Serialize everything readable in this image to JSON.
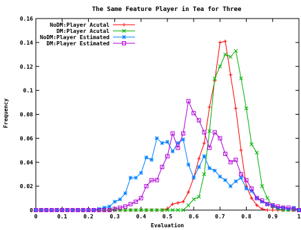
{
  "chart_data": {
    "type": "line",
    "title": "The Same Feature Player in Tea for Three",
    "xlabel": "Evaluation",
    "ylabel": "Frequency",
    "xlim": [
      0,
      1
    ],
    "ylim": [
      0,
      0.16
    ],
    "x_ticks": [
      "0",
      "0.1",
      "0.2",
      "0.3",
      "0.4",
      "0.5",
      "0.6",
      "0.7",
      "0.8",
      "0.9",
      "1"
    ],
    "y_ticks": [
      "0",
      "0.02",
      "0.04",
      "0.06",
      "0.08",
      "0.1",
      "0.12",
      "0.14",
      "0.16"
    ],
    "grid": false,
    "legend_position": "top-left",
    "series": [
      {
        "name": "NoDM:Player Acutal",
        "color": "#ff0000",
        "marker": "plus",
        "x": [
          0,
          0.02,
          0.04,
          0.06,
          0.08,
          0.1,
          0.12,
          0.14,
          0.16,
          0.18,
          0.2,
          0.22,
          0.24,
          0.26,
          0.28,
          0.3,
          0.32,
          0.34,
          0.36,
          0.38,
          0.4,
          0.42,
          0.44,
          0.46,
          0.48,
          0.5,
          0.52,
          0.54,
          0.56,
          0.58,
          0.6,
          0.62,
          0.64,
          0.66,
          0.68,
          0.7,
          0.72,
          0.74,
          0.76,
          0.78,
          0.8,
          0.82,
          0.84,
          0.86,
          0.88,
          0.9,
          0.92,
          0.94,
          0.96,
          0.98,
          1
        ],
        "y": [
          0,
          0,
          0,
          0,
          0,
          0,
          0,
          0,
          0,
          0,
          0,
          0,
          0,
          0,
          0,
          0,
          0,
          0,
          0,
          0,
          0,
          0,
          0,
          0,
          0,
          0.001,
          0.005,
          0.006,
          0.007,
          0.015,
          0.027,
          0.043,
          0.056,
          0.086,
          0.108,
          0.14,
          0.141,
          0.113,
          0.085,
          0.05,
          0.02,
          0.01,
          0.004,
          0.001,
          0,
          0,
          0,
          0,
          0,
          0,
          0
        ]
      },
      {
        "name": "DM:Player Acutal",
        "color": "#00b000",
        "marker": "x",
        "x": [
          0,
          0.02,
          0.04,
          0.06,
          0.08,
          0.1,
          0.12,
          0.14,
          0.16,
          0.18,
          0.2,
          0.22,
          0.24,
          0.26,
          0.28,
          0.3,
          0.32,
          0.34,
          0.36,
          0.38,
          0.4,
          0.42,
          0.44,
          0.46,
          0.48,
          0.5,
          0.52,
          0.54,
          0.56,
          0.58,
          0.6,
          0.62,
          0.64,
          0.66,
          0.68,
          0.7,
          0.72,
          0.74,
          0.76,
          0.78,
          0.8,
          0.82,
          0.84,
          0.86,
          0.88,
          0.9,
          0.92,
          0.94,
          0.96,
          0.98,
          1
        ],
        "y": [
          0,
          0,
          0,
          0,
          0,
          0,
          0,
          0,
          0,
          0,
          0,
          0,
          0,
          0,
          0,
          0,
          0,
          0,
          0,
          0,
          0,
          0,
          0,
          0,
          0,
          0,
          0,
          0,
          0,
          0.004,
          0.009,
          0.011,
          0.03,
          0.066,
          0.11,
          0.12,
          0.13,
          0.128,
          0.133,
          0.11,
          0.085,
          0.055,
          0.048,
          0.02,
          0.01,
          0.003,
          0.001,
          0,
          0,
          0,
          0
        ]
      },
      {
        "name": "NoDM:Player Estimated",
        "color": "#0080ff",
        "marker": "star",
        "x": [
          0,
          0.02,
          0.04,
          0.06,
          0.08,
          0.1,
          0.12,
          0.14,
          0.16,
          0.18,
          0.2,
          0.22,
          0.24,
          0.26,
          0.28,
          0.3,
          0.32,
          0.34,
          0.36,
          0.38,
          0.4,
          0.42,
          0.44,
          0.46,
          0.48,
          0.5,
          0.52,
          0.54,
          0.56,
          0.58,
          0.6,
          0.62,
          0.64,
          0.66,
          0.68,
          0.7,
          0.72,
          0.74,
          0.76,
          0.78,
          0.8,
          0.82,
          0.84,
          0.86,
          0.88,
          0.9,
          0.92,
          0.94,
          0.96,
          0.98,
          1
        ],
        "y": [
          0,
          0,
          0,
          0,
          0,
          0,
          0,
          0,
          0,
          0,
          0,
          0,
          0.001,
          0.002,
          0.003,
          0.007,
          0.009,
          0.014,
          0.027,
          0.027,
          0.031,
          0.044,
          0.042,
          0.06,
          0.056,
          0.057,
          0.049,
          0.056,
          0.059,
          0.038,
          0.027,
          0.036,
          0.045,
          0.035,
          0.033,
          0.028,
          0.025,
          0.02,
          0.024,
          0.027,
          0.018,
          0.016,
          0.01,
          0.007,
          0.005,
          0.004,
          0.002,
          0.002,
          0.001,
          0.002,
          0
        ]
      },
      {
        "name": "DM:Player Estimated",
        "color": "#b000d8",
        "marker": "square",
        "x": [
          0,
          0.02,
          0.04,
          0.06,
          0.08,
          0.1,
          0.12,
          0.14,
          0.16,
          0.18,
          0.2,
          0.22,
          0.24,
          0.26,
          0.28,
          0.3,
          0.32,
          0.34,
          0.36,
          0.38,
          0.4,
          0.42,
          0.44,
          0.46,
          0.48,
          0.5,
          0.52,
          0.54,
          0.56,
          0.58,
          0.6,
          0.62,
          0.64,
          0.66,
          0.68,
          0.7,
          0.72,
          0.74,
          0.76,
          0.78,
          0.8,
          0.82,
          0.84,
          0.86,
          0.88,
          0.9,
          0.92,
          0.94,
          0.96,
          0.98,
          1
        ],
        "y": [
          0,
          0,
          0,
          0,
          0,
          0,
          0,
          0,
          0,
          0,
          0,
          0,
          0,
          0,
          0,
          0.001,
          0.002,
          0.003,
          0.005,
          0.007,
          0.01,
          0.02,
          0.025,
          0.025,
          0.036,
          0.045,
          0.064,
          0.052,
          0.064,
          0.091,
          0.081,
          0.075,
          0.065,
          0.052,
          0.065,
          0.06,
          0.047,
          0.04,
          0.042,
          0.03,
          0.025,
          0.018,
          0.01,
          0.008,
          0.005,
          0.004,
          0.003,
          0.002,
          0.002,
          0.001,
          0
        ]
      }
    ]
  }
}
